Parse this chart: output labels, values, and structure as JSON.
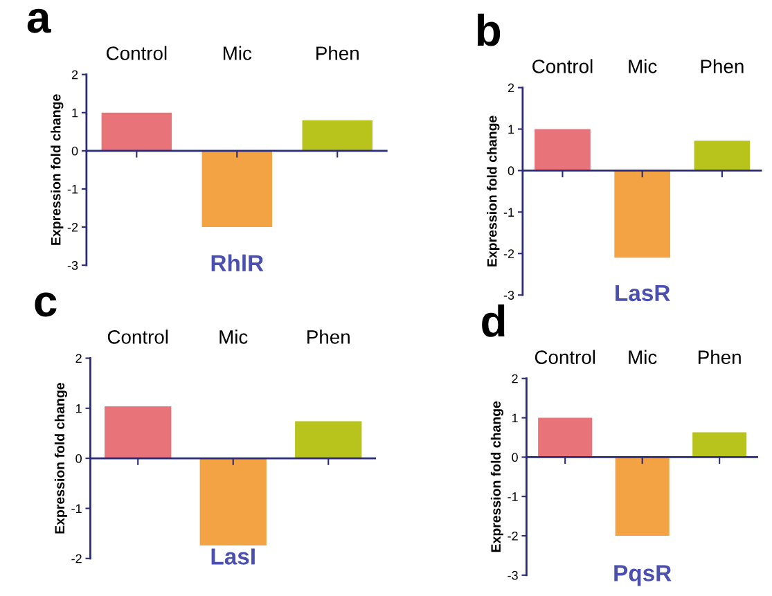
{
  "chart_data": [
    {
      "type": "bar",
      "title": "a",
      "xlabel": "RhlR",
      "ylabel": "Expression fold change",
      "categories": [
        "Control",
        "Mic",
        "Phen"
      ],
      "values": [
        1.0,
        -2.0,
        0.8
      ],
      "colors": [
        "#e8747a",
        "#f3a244",
        "#b8c41c"
      ],
      "ref_lines": [
        {
          "axis": "y",
          "value": 0,
          "color": "#2a2a7a"
        }
      ],
      "ylim": [
        -3,
        2
      ],
      "yticks": [
        -3,
        -2,
        -1,
        0,
        1,
        2
      ],
      "grid": false,
      "legend": false
    },
    {
      "type": "bar",
      "title": "b",
      "xlabel": "LasR",
      "ylabel": "Expression fold change",
      "categories": [
        "Control",
        "Mic",
        "Phen"
      ],
      "values": [
        1.0,
        -2.1,
        0.72
      ],
      "colors": [
        "#e8747a",
        "#f3a244",
        "#b8c41c"
      ],
      "ref_lines": [
        {
          "axis": "y",
          "value": 0,
          "color": "#2a2a7a"
        }
      ],
      "ylim": [
        -3,
        2
      ],
      "yticks": [
        -3,
        -2,
        -1,
        0,
        1,
        2
      ],
      "grid": false,
      "legend": false
    },
    {
      "type": "bar",
      "title": "c",
      "xlabel": "LasI",
      "ylabel": "Expression fold change",
      "categories": [
        "Control",
        "Mic",
        "Phen"
      ],
      "values": [
        1.04,
        -1.74,
        0.74
      ],
      "colors": [
        "#e8747a",
        "#f3a244",
        "#b8c41c"
      ],
      "ref_lines": [
        {
          "axis": "y",
          "value": 0,
          "color": "#2a2a7a"
        }
      ],
      "ylim": [
        -2,
        2
      ],
      "yticks": [
        -2,
        -1,
        0,
        1,
        2
      ],
      "grid": false,
      "legend": false
    },
    {
      "type": "bar",
      "title": "d",
      "xlabel": "PqsR",
      "ylabel": "Expression fold change",
      "categories": [
        "Control",
        "Mic",
        "Phen"
      ],
      "values": [
        1.0,
        -2.0,
        0.63
      ],
      "colors": [
        "#e8747a",
        "#f3a244",
        "#b8c41c"
      ],
      "ref_lines": [
        {
          "axis": "y",
          "value": 0,
          "color": "#2a2a7a"
        }
      ],
      "ylim": [
        -3,
        2
      ],
      "yticks": [
        -3,
        -2,
        -1,
        0,
        1,
        2
      ],
      "grid": false,
      "legend": false
    }
  ]
}
